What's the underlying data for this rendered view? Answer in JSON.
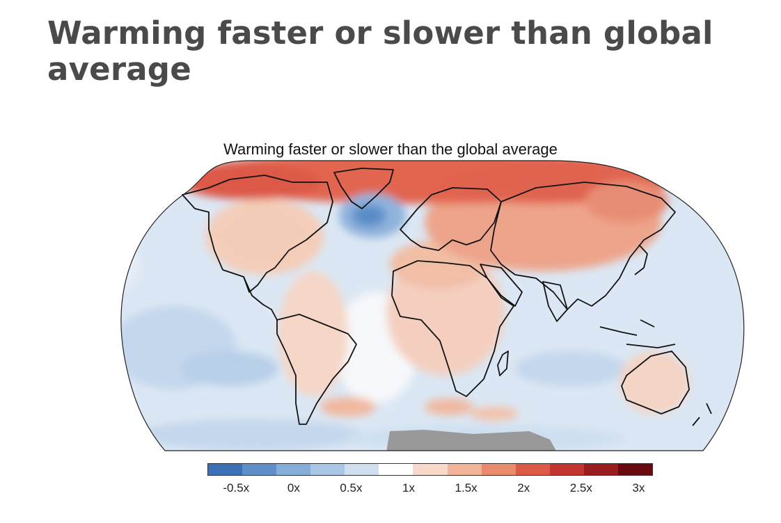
{
  "header": {
    "title": "Warming faster or slower than global average"
  },
  "map": {
    "title": "Warming faster or slower than the global average",
    "projection": "Robinson",
    "no_data_color": "#999999",
    "land_outline_color": "#111111"
  },
  "legend": {
    "colors": [
      "#3b6fb6",
      "#5f8fc8",
      "#86add8",
      "#a9c6e4",
      "#cfdff0",
      "#ffffff",
      "#f8d9ca",
      "#f1b39a",
      "#e88c6d",
      "#db5a45",
      "#c23430",
      "#9a1d1e",
      "#68080f"
    ],
    "ticks": [
      "-0.5x",
      "0x",
      "0.5x",
      "1x",
      "1.5x",
      "2x",
      "2.5x",
      "3x"
    ],
    "tick_values": [
      -0.5,
      0,
      0.5,
      1,
      1.5,
      2,
      2.5,
      3
    ],
    "range": [
      -0.75,
      3.125
    ]
  }
}
